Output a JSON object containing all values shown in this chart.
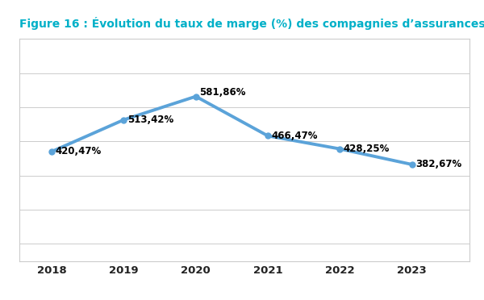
{
  "title": "Figure 16 : Évolution du taux de marge (%) des compagnies d’assurances",
  "years": [
    2018,
    2019,
    2020,
    2021,
    2022,
    2023
  ],
  "values": [
    420.47,
    513.42,
    581.86,
    466.47,
    428.25,
    382.67
  ],
  "labels": [
    "420,47%",
    "513,42%",
    "581,86%",
    "466,47%",
    "428,25%",
    "382,67%"
  ],
  "line_color": "#5ba3d9",
  "line_width": 2.8,
  "marker": "o",
  "marker_size": 5,
  "marker_color": "#5ba3d9",
  "title_color": "#00b0c8",
  "label_color": "#000000",
  "background_color": "#ffffff",
  "plot_bg_color": "#ffffff",
  "grid_color": "#cccccc",
  "border_color": "#cccccc",
  "tick_label_color": "#222222",
  "ylim": [
    100,
    750
  ],
  "yticks": [
    150,
    250,
    350,
    450,
    550,
    650,
    750
  ],
  "label_fontsize": 8.5,
  "title_fontsize": 10,
  "tick_fontsize": 9.5,
  "figsize": [
    6.0,
    3.72
  ],
  "dpi": 100
}
